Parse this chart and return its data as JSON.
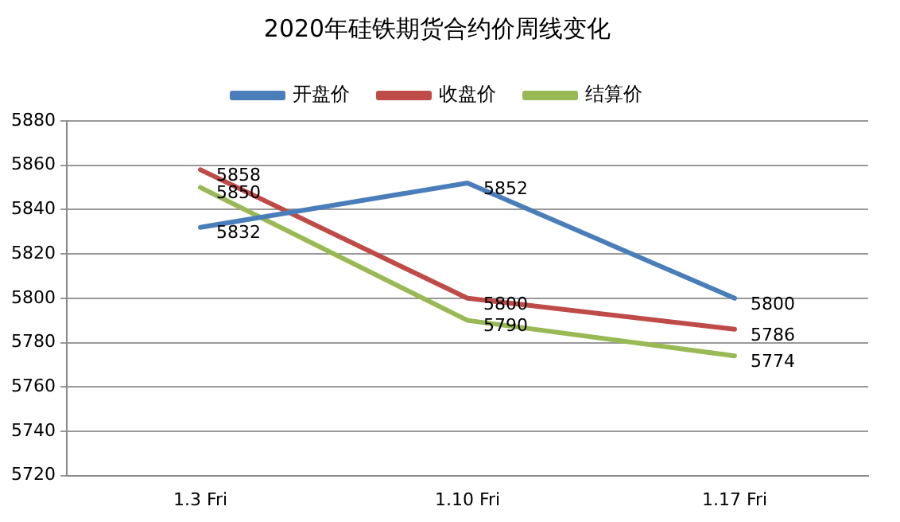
{
  "chart_data": {
    "type": "line",
    "title": "2020年硅铁期货合约价周线变化",
    "categories": [
      "1.3 Fri",
      "1.10 Fri",
      "1.17 Fri"
    ],
    "series": [
      {
        "name": "开盘价",
        "color": "#4a7ebb",
        "values": [
          5832,
          5852,
          5800
        ]
      },
      {
        "name": "收盘价",
        "color": "#be4b48",
        "values": [
          5858,
          5800,
          5786
        ]
      },
      {
        "name": "结算价",
        "color": "#98b954",
        "values": [
          5850,
          5790,
          5774
        ]
      }
    ],
    "ylim": [
      5720,
      5880
    ],
    "yticks": [
      5720,
      5740,
      5760,
      5780,
      5800,
      5820,
      5840,
      5860,
      5880
    ],
    "grid": "y",
    "legend": "top",
    "marker": "none",
    "line_style": "solid",
    "data_labels": true
  }
}
